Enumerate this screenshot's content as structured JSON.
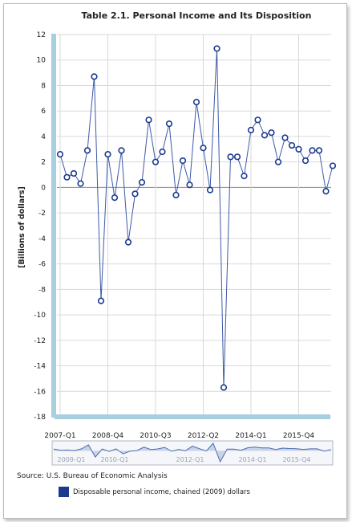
{
  "chart_data": {
    "type": "line",
    "title": "Table 2.1. Personal Income and Its Disposition",
    "ylabel": "[Billions of dollars]",
    "xlabel": "",
    "ylim": [
      -18,
      12
    ],
    "yticks": [
      12,
      10,
      8,
      6,
      4,
      2,
      0,
      -2,
      -4,
      -6,
      -8,
      -10,
      -12,
      -14,
      -16,
      -18
    ],
    "xtick_labels": [
      "2007-Q1",
      "2008-Q4",
      "2010-Q3",
      "2012-Q2",
      "2014-Q1",
      "2015-Q4"
    ],
    "grid": true,
    "series": [
      {
        "name": "Disposable personal income, chained (2009) dollars",
        "color": "#1a3a8c",
        "values": [
          2.6,
          0.8,
          1.1,
          0.3,
          2.9,
          8.7,
          -8.9,
          2.6,
          -0.8,
          2.9,
          -4.3,
          -0.5,
          0.4,
          5.3,
          2.0,
          2.8,
          5.0,
          -0.6,
          2.1,
          0.2,
          6.7,
          3.1,
          -0.2,
          10.9,
          -15.7,
          2.4,
          2.4,
          0.9,
          4.5,
          5.3,
          4.1,
          4.3,
          2.0,
          3.9,
          3.3,
          3.0,
          2.1,
          2.9,
          2.9,
          -0.3,
          1.7
        ]
      }
    ]
  },
  "source": "Source: U.S. Bureau of Economic Analysis",
  "navigator_labels": [
    "2009-Q1",
    "2010-Q1",
    "2012-Q1",
    "2014-Q1",
    "2015-Q4"
  ],
  "legend": {
    "label": "Disposable personal income, chained (2009) dollars",
    "color": "#1a3a8c"
  }
}
